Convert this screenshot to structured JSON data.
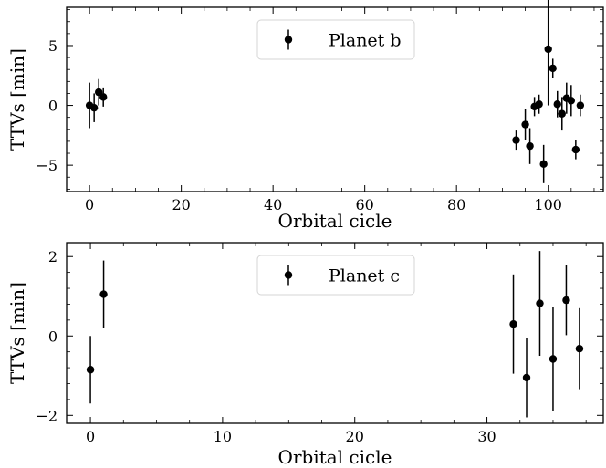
{
  "chart_data": [
    {
      "type": "scatter",
      "panel": "top",
      "xlabel": "Orbital cicle",
      "ylabel": "TTVs [min]",
      "xlim": [
        -5,
        112
      ],
      "ylim": [
        -7.2,
        8.2
      ],
      "xticks": [
        0,
        20,
        40,
        60,
        80,
        100
      ],
      "yticks": [
        -5,
        0,
        5
      ],
      "grid": false,
      "legend_position": "top-center",
      "series": [
        {
          "name": "Planet b",
          "color": "#000000",
          "marker": "circle-with-errorbars",
          "points": [
            {
              "x": 0,
              "y": 0.0,
              "err": 1.9
            },
            {
              "x": 1,
              "y": -0.2,
              "err": 1.2
            },
            {
              "x": 2,
              "y": 1.1,
              "err": 1.1
            },
            {
              "x": 3,
              "y": 0.7,
              "err": 0.8
            },
            {
              "x": 93,
              "y": -2.9,
              "err": 0.8
            },
            {
              "x": 95,
              "y": -1.6,
              "err": 1.3
            },
            {
              "x": 96,
              "y": -3.4,
              "err": 1.5
            },
            {
              "x": 97,
              "y": -0.1,
              "err": 0.8
            },
            {
              "x": 98,
              "y": 0.1,
              "err": 0.8
            },
            {
              "x": 99,
              "y": -4.9,
              "err": 1.6
            },
            {
              "x": 100,
              "y": 4.7,
              "err": 4.7
            },
            {
              "x": 101,
              "y": 3.1,
              "err": 0.8
            },
            {
              "x": 102,
              "y": 0.1,
              "err": 1.1
            },
            {
              "x": 103,
              "y": -0.7,
              "err": 1.4
            },
            {
              "x": 104,
              "y": 0.6,
              "err": 1.3
            },
            {
              "x": 105,
              "y": 0.4,
              "err": 1.3
            },
            {
              "x": 106,
              "y": -3.7,
              "err": 0.8
            },
            {
              "x": 107,
              "y": 0.0,
              "err": 0.9
            }
          ]
        }
      ]
    },
    {
      "type": "scatter",
      "panel": "bottom",
      "xlabel": "Orbital cicle",
      "ylabel": "TTVs [min]",
      "xlim": [
        -1.8,
        38.8
      ],
      "ylim": [
        -2.2,
        2.35
      ],
      "xticks": [
        0,
        10,
        20,
        30
      ],
      "yticks": [
        -2,
        0,
        2
      ],
      "grid": false,
      "legend_position": "top-center",
      "series": [
        {
          "name": "Planet c",
          "color": "#000000",
          "marker": "circle-with-errorbars",
          "points": [
            {
              "x": 0,
              "y": -0.85,
              "err": 0.85
            },
            {
              "x": 1,
              "y": 1.05,
              "err": 0.85
            },
            {
              "x": 32,
              "y": 0.3,
              "err": 1.25
            },
            {
              "x": 33,
              "y": -1.05,
              "err": 1.0
            },
            {
              "x": 34,
              "y": 0.82,
              "err": 1.32
            },
            {
              "x": 35,
              "y": -0.58,
              "err": 1.3
            },
            {
              "x": 36,
              "y": 0.9,
              "err": 0.88
            },
            {
              "x": 37,
              "y": -0.32,
              "err": 1.02
            }
          ]
        }
      ]
    }
  ]
}
